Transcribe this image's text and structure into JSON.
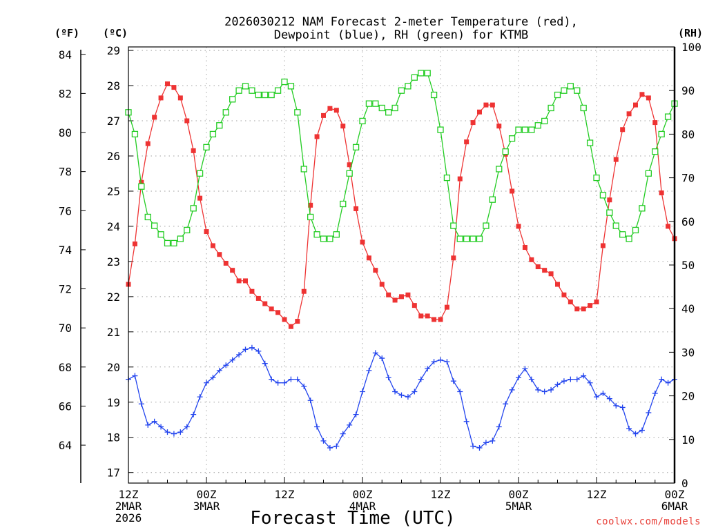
{
  "chart_data": {
    "type": "line",
    "title_line1": "2026030212 NAM Forecast 2-meter Temperature (red),",
    "title_line2": "Dewpoint (blue), RH (green) for KTMB",
    "xlabel": "Forecast Time (UTC)",
    "credit": "coolwx.com/models",
    "units": {
      "fahrenheit": "(ºF)",
      "celsius": "(ºC)",
      "rh": "(RH)"
    },
    "x_range_hours": [
      0,
      84
    ],
    "x_ticks": [
      {
        "hour": 0,
        "line1": "12Z",
        "line2": "2MAR",
        "line3": "2026"
      },
      {
        "hour": 12,
        "line1": "00Z",
        "line2": "3MAR",
        "line3": ""
      },
      {
        "hour": 24,
        "line1": "12Z",
        "line2": "",
        "line3": ""
      },
      {
        "hour": 36,
        "line1": "00Z",
        "line2": "4MAR",
        "line3": ""
      },
      {
        "hour": 48,
        "line1": "12Z",
        "line2": "",
        "line3": ""
      },
      {
        "hour": 60,
        "line1": "00Z",
        "line2": "5MAR",
        "line3": ""
      },
      {
        "hour": 72,
        "line1": "12Z",
        "line2": "",
        "line3": ""
      },
      {
        "hour": 84,
        "line1": "00Z",
        "line2": "6MAR",
        "line3": ""
      }
    ],
    "celsius_axis": {
      "range": [
        16.7,
        29.1
      ],
      "ticks": [
        "17",
        "18",
        "19",
        "20",
        "21",
        "22",
        "23",
        "24",
        "25",
        "26",
        "27",
        "28",
        "29"
      ]
    },
    "fahrenheit_axis": {
      "ticks": [
        "64",
        "66",
        "68",
        "70",
        "72",
        "74",
        "76",
        "78",
        "80",
        "82",
        "84"
      ]
    },
    "rh_axis": {
      "range": [
        0,
        100
      ],
      "ticks": [
        "0",
        "10",
        "20",
        "30",
        "40",
        "50",
        "60",
        "70",
        "80",
        "90",
        "100"
      ]
    },
    "series": [
      {
        "name": "Temperature",
        "units": "C",
        "color": "#ee3333",
        "marker": "filled-square",
        "values": [
          22.35,
          23.5,
          25.25,
          26.35,
          27.1,
          27.65,
          28.05,
          27.95,
          27.65,
          27.0,
          26.15,
          24.8,
          23.85,
          23.45,
          23.2,
          22.95,
          22.75,
          22.45,
          22.45,
          22.15,
          21.95,
          21.8,
          21.65,
          21.55,
          21.35,
          21.15,
          21.3,
          22.15,
          24.6,
          26.55,
          27.15,
          27.35,
          27.3,
          26.85,
          25.75,
          24.5,
          23.55,
          23.1,
          22.75,
          22.35,
          22.05,
          21.9,
          22.0,
          22.05,
          21.75,
          21.45,
          21.45,
          21.35,
          21.35,
          21.7,
          23.1,
          25.35,
          26.4,
          26.95,
          27.25,
          27.45,
          27.45,
          26.85,
          26.05,
          25.0,
          24.0,
          23.4,
          23.05,
          22.85,
          22.75,
          22.65,
          22.35,
          22.05,
          21.85,
          21.65,
          21.65,
          21.75,
          21.85,
          23.45,
          24.75,
          25.9,
          26.75,
          27.2,
          27.45,
          27.75,
          27.65,
          26.95,
          24.95,
          24.0,
          23.65
        ]
      },
      {
        "name": "Dewpoint",
        "units": "C",
        "color": "#2244ee",
        "marker": "plus",
        "values": [
          19.65,
          19.75,
          18.95,
          18.35,
          18.45,
          18.3,
          18.15,
          18.1,
          18.15,
          18.3,
          18.65,
          19.15,
          19.55,
          19.7,
          19.9,
          20.05,
          20.2,
          20.35,
          20.5,
          20.55,
          20.45,
          20.1,
          19.65,
          19.55,
          19.55,
          19.65,
          19.65,
          19.45,
          19.05,
          18.3,
          17.9,
          17.7,
          17.75,
          18.1,
          18.35,
          18.65,
          19.3,
          19.9,
          20.4,
          20.25,
          19.7,
          19.3,
          19.2,
          19.15,
          19.3,
          19.65,
          19.95,
          20.15,
          20.2,
          20.15,
          19.6,
          19.3,
          18.45,
          17.75,
          17.7,
          17.85,
          17.9,
          18.3,
          18.95,
          19.35,
          19.7,
          19.95,
          19.65,
          19.35,
          19.3,
          19.35,
          19.5,
          19.6,
          19.65,
          19.65,
          19.75,
          19.55,
          19.15,
          19.25,
          19.1,
          18.9,
          18.85,
          18.25,
          18.1,
          18.2,
          18.7,
          19.25,
          19.65,
          19.55,
          19.65
        ]
      },
      {
        "name": "RH",
        "units": "%",
        "color": "#22cc22",
        "marker": "open-square",
        "values": [
          85,
          80,
          68,
          61,
          59,
          57,
          55,
          55,
          56,
          58,
          63,
          71,
          77,
          80,
          82,
          85,
          88,
          90,
          91,
          90,
          89,
          89,
          89,
          90,
          92,
          91,
          85,
          72,
          61,
          57,
          56,
          56,
          57,
          64,
          71,
          77,
          83,
          87,
          87,
          86,
          85,
          86,
          90,
          91,
          93,
          94,
          94,
          89,
          81,
          70,
          59,
          56,
          56,
          56,
          56,
          59,
          65,
          72,
          76,
          79,
          81,
          81,
          81,
          82,
          83,
          86,
          89,
          90,
          91,
          90,
          86,
          78,
          70,
          66,
          62,
          59,
          57,
          56,
          58,
          63,
          71,
          76,
          80,
          84,
          87
        ]
      }
    ]
  }
}
